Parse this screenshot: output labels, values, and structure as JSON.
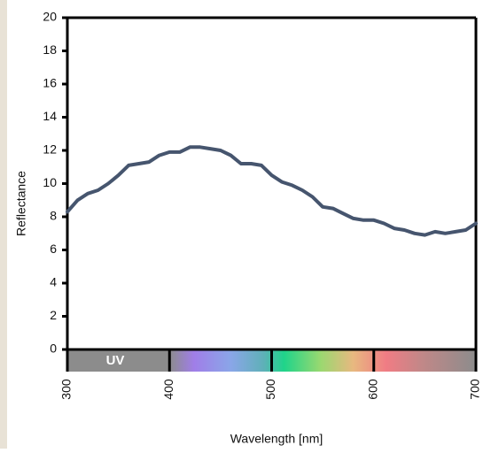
{
  "chart_data": {
    "type": "line",
    "x": [
      300,
      310,
      320,
      330,
      340,
      350,
      360,
      370,
      380,
      390,
      400,
      410,
      420,
      430,
      440,
      450,
      460,
      470,
      480,
      490,
      500,
      510,
      520,
      530,
      540,
      550,
      560,
      570,
      580,
      590,
      600,
      610,
      620,
      630,
      640,
      650,
      660,
      670,
      680,
      690,
      700
    ],
    "values": [
      8.3,
      9.0,
      9.4,
      9.6,
      10.0,
      10.5,
      11.1,
      11.2,
      11.3,
      11.7,
      11.9,
      11.9,
      12.2,
      12.2,
      12.1,
      12.0,
      11.7,
      11.2,
      11.2,
      11.1,
      10.5,
      10.1,
      9.9,
      9.6,
      9.2,
      8.6,
      8.5,
      8.2,
      7.9,
      7.8,
      7.8,
      7.6,
      7.3,
      7.2,
      7.0,
      6.9,
      7.1,
      7.0,
      7.1,
      7.2,
      7.6
    ],
    "color": "#46556e",
    "xlim": [
      300,
      700
    ],
    "xticks": [
      300,
      400,
      500,
      600,
      700
    ],
    "ylim": [
      0,
      20
    ],
    "yticks": [
      0,
      2,
      4,
      6,
      8,
      10,
      12,
      14,
      16,
      18,
      20
    ],
    "xlabel": "Wavelength [nm]",
    "ylabel": "Reflectance",
    "band_label": "UV"
  }
}
